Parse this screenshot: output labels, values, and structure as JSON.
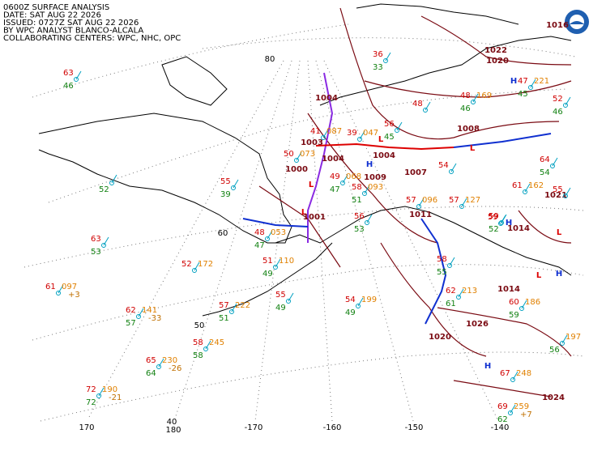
{
  "header": {
    "lines": [
      "0600Z SURFACE ANALYSIS",
      "DATE: SAT AUG 22 2026",
      "ISSUED: 0727Z SAT AUG 22 2026",
      "BY WPC ANALYST BLANCO-ALCALA",
      "COLLABORATING CENTERS: WPC, NHC, OPC"
    ]
  },
  "graticule": {
    "labels": [
      "80",
      "60",
      "50",
      "40",
      "170",
      "180",
      "-170",
      "-160",
      "-150",
      "-140"
    ]
  },
  "highs": [
    "H",
    "H",
    "H",
    "H",
    "H"
  ],
  "lows": [
    "L",
    "L",
    "L",
    "L",
    "L",
    "L"
  ],
  "isobar_labels": [
    "1004",
    "1008",
    "1003",
    "1004",
    "1004",
    "1000",
    "1009",
    "1007",
    "1011",
    "1001",
    "1014",
    "1014",
    "1026",
    "1020",
    "1024",
    "1022",
    "1020",
    "1016",
    "1021"
  ],
  "stations": [
    {
      "temp": "63",
      "dew": "46"
    },
    {
      "dew": "52"
    },
    {
      "temp": "63",
      "dew": "53"
    },
    {
      "temp": "61",
      "pres": "097",
      "tend": "+3"
    },
    {
      "temp": "62",
      "pres": "141",
      "dew": "57",
      "tend": "-33"
    },
    {
      "temp": "65",
      "pres": "230",
      "dew": "64",
      "tend": "-26"
    },
    {
      "temp": "72",
      "pres": "190",
      "dew": "72",
      "tend": "-21"
    },
    {
      "temp": "55",
      "dew": "39"
    },
    {
      "temp": "52",
      "pres": "172"
    },
    {
      "temp": "57",
      "pres": "222",
      "dew": "51"
    },
    {
      "temp": "58",
      "pres": "245",
      "dew": "58"
    },
    {
      "temp": "48",
      "pres": "053",
      "dew": "47"
    },
    {
      "temp": "51",
      "pres": "110",
      "dew": "49"
    },
    {
      "temp": "55",
      "dew": "49"
    },
    {
      "temp": "50",
      "pres": "073"
    },
    {
      "temp": "41",
      "pres": "087"
    },
    {
      "temp": "39",
      "pres": "047"
    },
    {
      "temp": "49",
      "pres": "068",
      "dew": "47"
    },
    {
      "temp": "58",
      "pres": "093",
      "dew": "51"
    },
    {
      "temp": "56",
      "dew": "53"
    },
    {
      "temp": "54",
      "pres": "199",
      "dew": "49"
    },
    {
      "temp": "56",
      "dew": "45"
    },
    {
      "temp": "48"
    },
    {
      "temp": "57",
      "pres": "096"
    },
    {
      "temp": "54"
    },
    {
      "temp": "57",
      "pres": "127"
    },
    {
      "temp": "58",
      "dew": "55"
    },
    {
      "temp": "62",
      "pres": "213",
      "dew": "61"
    },
    {
      "temp": "59"
    },
    {
      "temp": "59",
      "dew": "52"
    },
    {
      "temp": "61",
      "pres": "162"
    },
    {
      "temp": "60",
      "pres": "186",
      "dew": "59"
    },
    {
      "temp": "67",
      "pres": "248"
    },
    {
      "temp": "69",
      "pres": "259",
      "dew": "62",
      "tend": "+7"
    },
    {
      "temp": "64",
      "dew": "54"
    },
    {
      "temp": "52",
      "dew": "46"
    },
    {
      "temp": "47",
      "pres": "221",
      "dew": "45"
    },
    {
      "temp": "36",
      "dew": "33"
    },
    {
      "temp": "48",
      "pres": "169",
      "dew": "46"
    },
    {
      "temp": "55"
    },
    {
      "pres": "197",
      "dew": "56"
    }
  ]
}
